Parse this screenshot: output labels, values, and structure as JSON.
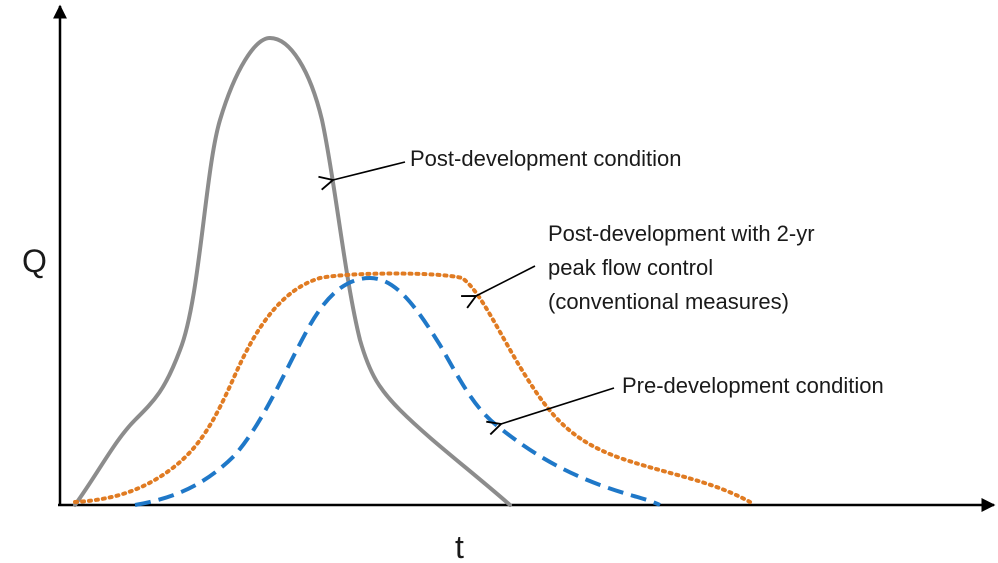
{
  "axes": {
    "y_label": "Q",
    "x_label": "t"
  },
  "annotations": [
    {
      "lines": [
        "Post-development condition"
      ]
    },
    {
      "lines": [
        "Post-development with 2-yr",
        "peak flow control",
        "(conventional measures)"
      ]
    },
    {
      "lines": [
        "Pre-development condition"
      ]
    }
  ]
}
